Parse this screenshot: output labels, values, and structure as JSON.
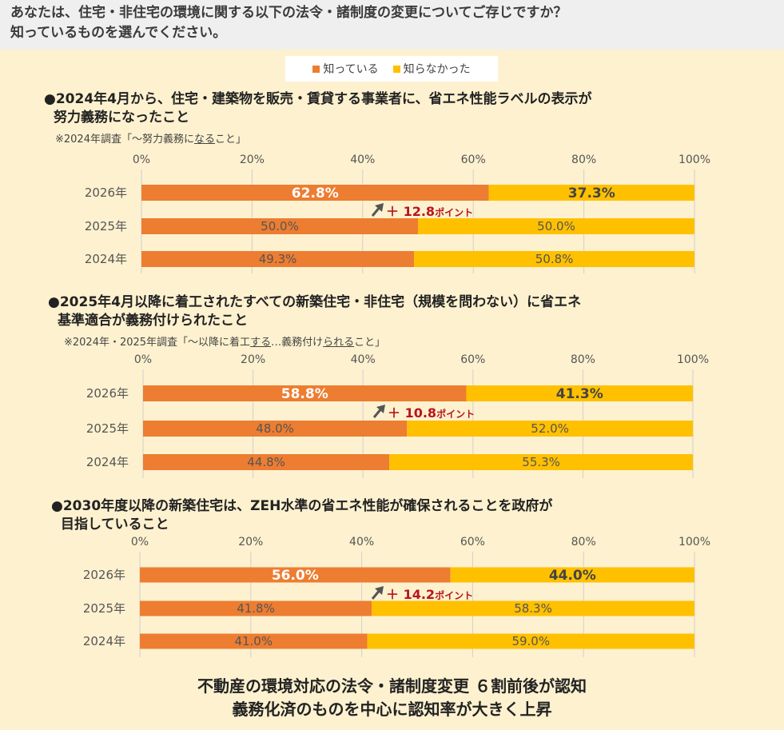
{
  "question_line1": "あなたは、住宅・非住宅の環境に関する以下の法令・諸制度の変更についてご存じですか？",
  "question_line2": "知っているものを選んでください。",
  "legend": [
    {
      "label": "知っている",
      "color": "#ed7d31"
    },
    {
      "label": "知らなかった",
      "color": "#ffc000"
    }
  ],
  "footer_line1": "不動産の環境対応の法令・諸制度変更 ６割前後が認知",
  "footer_line2": "義務化済のものを中心に認知率が大きく上昇",
  "chart_data": [
    {
      "type": "bar",
      "orientation": "horizontal",
      "stacked": true,
      "title_line1": "●2024年4月から、住宅・建築物を販売・賃貸する事業者に、省エネ性能ラベルの表示が",
      "title_line2": "努力義務になったこと",
      "note_parts": [
        "※2024年調査「～努力義務に",
        "なる",
        "こと」"
      ],
      "note_underlined_index": 1,
      "categories": [
        "2026年",
        "2025年",
        "2024年"
      ],
      "series": [
        {
          "name": "知っている",
          "values": [
            62.8,
            50.0,
            49.3
          ],
          "labels": [
            "62.8%",
            "50.0%",
            "49.3%"
          ]
        },
        {
          "name": "知らなかった",
          "values": [
            37.3,
            50.0,
            50.8
          ],
          "labels": [
            "37.3%",
            "50.0%",
            "50.8%"
          ]
        }
      ],
      "xlim": [
        0,
        100
      ],
      "xticks": [
        "0%",
        "20%",
        "40%",
        "60%",
        "80%",
        "100%"
      ],
      "annotation": {
        "prefix": "＋",
        "value": "12.8",
        "suffix": "ポイント"
      }
    },
    {
      "type": "bar",
      "orientation": "horizontal",
      "stacked": true,
      "title_line1": "●2025年4月以降に着工されたすべての新築住宅・非住宅（規模を問わない）に省エネ",
      "title_line2": "基準適合が義務付けられたこと",
      "note_parts": [
        "※2024年・2025年調査「～以降に着工",
        "する",
        "…義務付け",
        "られる",
        "こと」"
      ],
      "note_underlined_index": [
        1,
        3
      ],
      "categories": [
        "2026年",
        "2025年",
        "2024年"
      ],
      "series": [
        {
          "name": "知っている",
          "values": [
            58.8,
            48.0,
            44.8
          ],
          "labels": [
            "58.8%",
            "48.0%",
            "44.8%"
          ]
        },
        {
          "name": "知らなかった",
          "values": [
            41.3,
            52.0,
            55.3
          ],
          "labels": [
            "41.3%",
            "52.0%",
            "55.3%"
          ]
        }
      ],
      "xlim": [
        0,
        100
      ],
      "xticks": [
        "0%",
        "20%",
        "40%",
        "60%",
        "80%",
        "100%"
      ],
      "annotation": {
        "prefix": "＋",
        "value": "10.8",
        "suffix": "ポイント"
      }
    },
    {
      "type": "bar",
      "orientation": "horizontal",
      "stacked": true,
      "title_line1": "●2030年度以降の新築住宅は、ZEH水準の省エネ性能が確保されることを政府が",
      "title_line2": "目指していること",
      "categories": [
        "2026年",
        "2025年",
        "2024年"
      ],
      "series": [
        {
          "name": "知っている",
          "values": [
            56.0,
            41.8,
            41.0
          ],
          "labels": [
            "56.0%",
            "41.8%",
            "41.0%"
          ]
        },
        {
          "name": "知らなかった",
          "values": [
            44.0,
            58.3,
            59.0
          ],
          "labels": [
            "44.0%",
            "58.3%",
            "59.0%"
          ]
        }
      ],
      "xlim": [
        0,
        100
      ],
      "xticks": [
        "0%",
        "20%",
        "40%",
        "60%",
        "80%",
        "100%"
      ],
      "annotation": {
        "prefix": "＋",
        "value": "14.2",
        "suffix": "ポイント"
      }
    }
  ]
}
